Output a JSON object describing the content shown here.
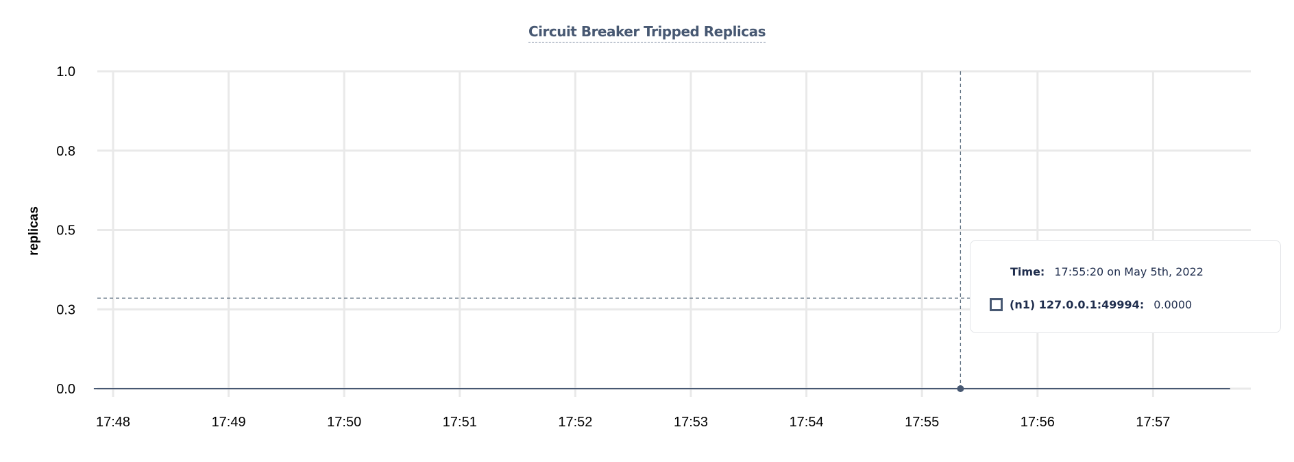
{
  "chart_data": {
    "type": "line",
    "title": "Circuit Breaker Tripped Replicas",
    "ylabel": "replicas",
    "xlabel": "",
    "x_ticks": [
      "17:48",
      "17:49",
      "17:50",
      "17:51",
      "17:52",
      "17:53",
      "17:54",
      "17:55",
      "17:56",
      "17:57"
    ],
    "y_ticks": [
      "0.0",
      "0.3",
      "0.5",
      "0.8",
      "1.0"
    ],
    "ylim": [
      0,
      1
    ],
    "grid": true,
    "series": [
      {
        "name": "(n1) 127.0.0.1:49994",
        "color": "#475872",
        "x": [
          "17:47:50",
          "17:57:40"
        ],
        "y": [
          0,
          0
        ]
      }
    ],
    "hover": {
      "x": "17:55:20",
      "y": 0
    }
  },
  "tooltip": {
    "time_label": "Time:",
    "time_value": "17:55:20 on May 5th, 2022",
    "series_label": "(n1) 127.0.0.1:49994:",
    "series_value": "0.0000"
  }
}
